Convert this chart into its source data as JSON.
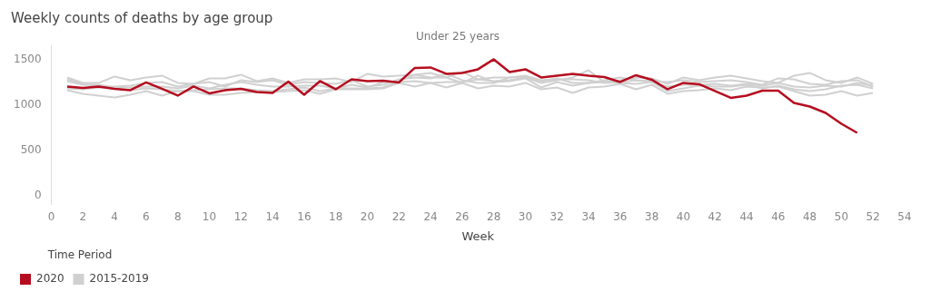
{
  "chart_data": {
    "type": "line",
    "title": "Weekly counts of deaths by age group",
    "subtitle": "Under 25 years",
    "xlabel": "Week",
    "legend_title": "Time Period",
    "xlim": [
      0,
      54
    ],
    "xticks": [
      0,
      2,
      4,
      6,
      8,
      10,
      12,
      14,
      16,
      18,
      20,
      22,
      24,
      26,
      28,
      30,
      32,
      34,
      36,
      38,
      40,
      42,
      44,
      46,
      48,
      50,
      52,
      54
    ],
    "ylim": [
      -100,
      1650
    ],
    "yticks": [
      0,
      500,
      1000,
      1500
    ],
    "grid": false,
    "legend": "bottom left",
    "marker": "none",
    "line_style": "solid",
    "x": [
      1,
      2,
      3,
      4,
      5,
      6,
      7,
      8,
      9,
      10,
      11,
      12,
      13,
      14,
      15,
      16,
      17,
      18,
      19,
      20,
      21,
      22,
      23,
      24,
      25,
      26,
      27,
      28,
      29,
      30,
      31,
      32,
      33,
      34,
      35,
      36,
      37,
      38,
      39,
      40,
      41,
      42,
      43,
      44,
      45,
      46,
      47,
      48,
      49,
      50,
      51,
      52
    ],
    "series": [
      {
        "name": "2015-2019",
        "color": "#d0d0d0",
        "values": [
          1300,
          1240,
          1240,
          1310,
          1270,
          1300,
          1320,
          1240,
          1230,
          1290,
          1290,
          1330,
          1260,
          1290,
          1240,
          1280,
          1280,
          1290,
          1250,
          1340,
          1310,
          1320,
          1330,
          1350,
          1300,
          1360,
          1280,
          1260,
          1270,
          1300,
          1240,
          1270,
          1300,
          1380,
          1250,
          1270,
          1300,
          1290,
          1230,
          1300,
          1270,
          1300,
          1320,
          1290,
          1260,
          1240,
          1320,
          1350,
          1270,
          1240,
          1300,
          1230
        ]
      },
      {
        "color": "#d0d0d0",
        "values": [
          1280,
          1230,
          1200,
          1200,
          1210,
          1240,
          1250,
          1200,
          1230,
          1250,
          1200,
          1270,
          1250,
          1270,
          1220,
          1250,
          1240,
          1230,
          1270,
          1200,
          1220,
          1280,
          1300,
          1290,
          1340,
          1270,
          1240,
          1240,
          1300,
          1310,
          1260,
          1290,
          1240,
          1240,
          1270,
          1300,
          1270,
          1260,
          1250,
          1270,
          1250,
          1260,
          1270,
          1250,
          1220,
          1290,
          1280,
          1230,
          1220,
          1260,
          1270,
          1200
        ]
      },
      {
        "color": "#d0d0d0",
        "values": [
          1260,
          1220,
          1220,
          1190,
          1190,
          1200,
          1200,
          1180,
          1210,
          1180,
          1220,
          1250,
          1220,
          1200,
          1200,
          1210,
          1210,
          1180,
          1220,
          1190,
          1250,
          1250,
          1260,
          1240,
          1250,
          1250,
          1280,
          1300,
          1300,
          1320,
          1270,
          1280,
          1280,
          1270,
          1240,
          1250,
          1270,
          1250,
          1200,
          1220,
          1220,
          1230,
          1210,
          1230,
          1210,
          1240,
          1200,
          1190,
          1210,
          1200,
          1240,
          1210
        ]
      },
      {
        "color": "#d0d0d0",
        "values": [
          1180,
          1170,
          1190,
          1180,
          1160,
          1180,
          1170,
          1150,
          1160,
          1170,
          1180,
          1180,
          1160,
          1150,
          1170,
          1190,
          1150,
          1180,
          1180,
          1180,
          1190,
          1260,
          1330,
          1300,
          1300,
          1240,
          1320,
          1250,
          1260,
          1290,
          1190,
          1250,
          1210,
          1240,
          1250,
          1240,
          1230,
          1250,
          1150,
          1180,
          1210,
          1200,
          1200,
          1220,
          1180,
          1210,
          1170,
          1150,
          1170,
          1210,
          1220,
          1180
        ]
      },
      {
        "color": "#d0d0d0",
        "values": [
          1160,
          1120,
          1100,
          1080,
          1110,
          1150,
          1100,
          1150,
          1150,
          1110,
          1110,
          1130,
          1140,
          1140,
          1150,
          1160,
          1120,
          1170,
          1170,
          1170,
          1180,
          1240,
          1200,
          1240,
          1190,
          1240,
          1180,
          1210,
          1200,
          1240,
          1170,
          1190,
          1130,
          1190,
          1200,
          1230,
          1170,
          1220,
          1120,
          1150,
          1160,
          1180,
          1160,
          1200,
          1190,
          1200,
          1150,
          1100,
          1110,
          1150,
          1100,
          1130
        ]
      },
      {
        "name": "2020",
        "color": "#b50d1f",
        "values": [
          1200,
          1185,
          1200,
          1175,
          1160,
          1245,
          1175,
          1100,
          1200,
          1125,
          1160,
          1175,
          1140,
          1130,
          1255,
          1110,
          1260,
          1170,
          1280,
          1260,
          1265,
          1245,
          1405,
          1410,
          1340,
          1350,
          1390,
          1500,
          1360,
          1390,
          1300,
          1320,
          1340,
          1320,
          1305,
          1250,
          1325,
          1275,
          1170,
          1240,
          1225,
          1150,
          1075,
          1100,
          1155,
          1155,
          1020,
          980,
          910,
          790,
          690,
          null
        ]
      }
    ]
  }
}
